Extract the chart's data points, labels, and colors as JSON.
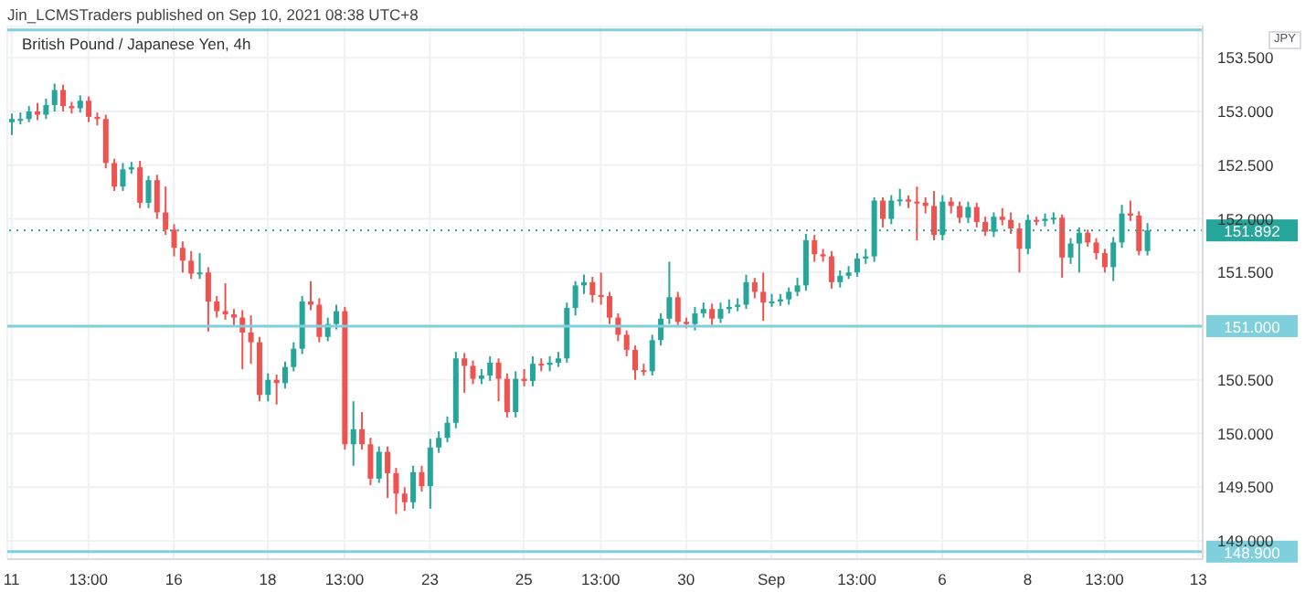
{
  "chart_data": {
    "type": "candlestick",
    "title": "British Pound / Japanese Yen, 4h",
    "annotations": [
      "Jin_LCMSTraders published on Sep 10, 2021 08:38 UTC+8",
      "JPY"
    ],
    "categories": [
      "11",
      null,
      null,
      null,
      null,
      null,
      null,
      null,
      null,
      "13:00",
      null,
      null,
      null,
      null,
      null,
      null,
      null,
      null,
      null,
      "16",
      null,
      null,
      null,
      null,
      null,
      null,
      null,
      null,
      null,
      null,
      "18",
      null,
      null,
      null,
      null,
      null,
      null,
      null,
      null,
      "13:00",
      null,
      null,
      null,
      null,
      null,
      null,
      null,
      null,
      null,
      "23",
      null,
      null,
      null,
      null,
      null,
      null,
      null,
      null,
      null,
      null,
      "25",
      null,
      null,
      null,
      null,
      null,
      null,
      null,
      null,
      "13:00",
      null,
      null,
      null,
      null,
      null,
      null,
      null,
      null,
      null,
      "30",
      null,
      null,
      null,
      null,
      null,
      null,
      null,
      null,
      null,
      "Sep",
      null,
      null,
      null,
      null,
      null,
      null,
      null,
      null,
      null,
      "13:00",
      null,
      null,
      null,
      null,
      null,
      null,
      null,
      null,
      null,
      "6",
      null,
      null,
      null,
      null,
      null,
      null,
      null,
      null,
      null,
      "8",
      null,
      null,
      null,
      null,
      null,
      null,
      null,
      null,
      "13:00",
      null,
      null,
      null,
      null,
      null,
      null,
      null,
      null,
      null,
      null,
      "13"
    ],
    "ohlc": [
      [
        152.9,
        152.98,
        152.78,
        152.93
      ],
      [
        152.93,
        152.99,
        152.88,
        152.93
      ],
      [
        152.93,
        153.05,
        152.9,
        153.0
      ],
      [
        153.0,
        153.08,
        152.92,
        152.97
      ],
      [
        152.97,
        153.12,
        152.93,
        153.06
      ],
      [
        153.06,
        153.26,
        153.0,
        153.2
      ],
      [
        153.2,
        153.25,
        153.0,
        153.05
      ],
      [
        153.05,
        153.09,
        152.98,
        153.03
      ],
      [
        153.03,
        153.15,
        152.99,
        153.1
      ],
      [
        153.1,
        153.14,
        152.9,
        152.95
      ],
      [
        152.95,
        152.99,
        152.87,
        152.93
      ],
      [
        152.93,
        152.97,
        152.47,
        152.52
      ],
      [
        152.52,
        152.56,
        152.26,
        152.3
      ],
      [
        152.3,
        152.52,
        152.26,
        152.46
      ],
      [
        152.46,
        152.53,
        152.42,
        152.48
      ],
      [
        152.48,
        152.54,
        152.1,
        152.15
      ],
      [
        152.15,
        152.4,
        152.1,
        152.36
      ],
      [
        152.36,
        152.41,
        152.0,
        152.06
      ],
      [
        152.06,
        152.3,
        151.85,
        151.9
      ],
      [
        151.9,
        151.95,
        151.65,
        151.73
      ],
      [
        151.73,
        151.79,
        151.5,
        151.61
      ],
      [
        151.61,
        151.7,
        151.44,
        151.49
      ],
      [
        151.49,
        151.68,
        151.44,
        151.5
      ],
      [
        151.5,
        151.55,
        150.95,
        151.23
      ],
      [
        151.23,
        151.28,
        151.08,
        151.14
      ],
      [
        151.14,
        151.4,
        151.06,
        151.11
      ],
      [
        151.11,
        151.16,
        151.0,
        151.08
      ],
      [
        151.08,
        151.15,
        150.6,
        150.94
      ],
      [
        150.94,
        151.1,
        150.65,
        150.85
      ],
      [
        150.85,
        150.9,
        150.3,
        150.36
      ],
      [
        150.36,
        150.56,
        150.3,
        150.5
      ],
      [
        150.5,
        150.55,
        150.27,
        150.47
      ],
      [
        150.47,
        150.67,
        150.42,
        150.62
      ],
      [
        150.62,
        150.85,
        150.58,
        150.79
      ],
      [
        150.79,
        151.28,
        150.74,
        151.23
      ],
      [
        151.23,
        151.42,
        151.15,
        151.2
      ],
      [
        151.2,
        151.26,
        150.85,
        150.9
      ],
      [
        150.9,
        151.08,
        150.86,
        151.02
      ],
      [
        151.02,
        151.2,
        150.97,
        151.14
      ],
      [
        151.14,
        151.18,
        149.85,
        149.9
      ],
      [
        149.9,
        150.3,
        149.7,
        150.04
      ],
      [
        150.04,
        150.2,
        149.85,
        149.9
      ],
      [
        149.9,
        149.96,
        149.52,
        149.58
      ],
      [
        149.58,
        149.88,
        149.54,
        149.83
      ],
      [
        149.83,
        149.88,
        149.4,
        149.63
      ],
      [
        149.63,
        149.68,
        149.25,
        149.44
      ],
      [
        149.44,
        149.5,
        149.28,
        149.36
      ],
      [
        149.36,
        149.7,
        149.3,
        149.64
      ],
      [
        149.64,
        149.7,
        149.46,
        149.51
      ],
      [
        149.51,
        149.95,
        149.3,
        149.87
      ],
      [
        149.87,
        150.02,
        149.82,
        149.96
      ],
      [
        149.96,
        150.16,
        149.92,
        150.1
      ],
      [
        150.1,
        150.76,
        150.05,
        150.7
      ],
      [
        150.7,
        150.75,
        150.38,
        150.63
      ],
      [
        150.63,
        150.68,
        150.46,
        150.51
      ],
      [
        150.51,
        150.6,
        150.46,
        150.54
      ],
      [
        150.54,
        150.72,
        150.49,
        150.66
      ],
      [
        150.66,
        150.7,
        150.3,
        150.51
      ],
      [
        150.51,
        150.56,
        150.15,
        150.2
      ],
      [
        150.2,
        150.58,
        150.15,
        150.51
      ],
      [
        150.51,
        150.6,
        150.44,
        150.49
      ],
      [
        150.49,
        150.72,
        150.44,
        150.65
      ],
      [
        150.65,
        150.7,
        150.58,
        150.64
      ],
      [
        150.64,
        150.72,
        150.58,
        150.66
      ],
      [
        150.66,
        150.76,
        150.62,
        150.7
      ],
      [
        150.7,
        151.22,
        150.66,
        151.17
      ],
      [
        151.17,
        151.42,
        151.1,
        151.38
      ],
      [
        151.38,
        151.48,
        151.3,
        151.41
      ],
      [
        151.41,
        151.46,
        151.22,
        151.29
      ],
      [
        151.29,
        151.5,
        151.2,
        151.28
      ],
      [
        151.28,
        151.32,
        151.02,
        151.08
      ],
      [
        151.08,
        151.12,
        150.86,
        150.92
      ],
      [
        150.92,
        150.96,
        150.72,
        150.78
      ],
      [
        150.78,
        150.82,
        150.5,
        150.59
      ],
      [
        150.59,
        150.65,
        150.54,
        150.58
      ],
      [
        150.58,
        150.92,
        150.54,
        150.87
      ],
      [
        150.87,
        151.12,
        150.82,
        151.07
      ],
      [
        151.07,
        151.6,
        151.02,
        151.27
      ],
      [
        151.27,
        151.32,
        151.0,
        151.04
      ],
      [
        151.04,
        151.08,
        150.98,
        151.02
      ],
      [
        151.02,
        151.18,
        150.96,
        151.12
      ],
      [
        151.12,
        151.22,
        151.08,
        151.16
      ],
      [
        151.16,
        151.21,
        151.0,
        151.07
      ],
      [
        151.07,
        151.22,
        151.03,
        151.16
      ],
      [
        151.16,
        151.25,
        151.12,
        151.18
      ],
      [
        151.18,
        151.26,
        151.14,
        151.2
      ],
      [
        151.2,
        151.48,
        151.16,
        151.41
      ],
      [
        151.41,
        151.45,
        151.26,
        151.32
      ],
      [
        151.32,
        151.5,
        151.05,
        151.22
      ],
      [
        151.22,
        151.3,
        151.18,
        151.23
      ],
      [
        151.23,
        151.3,
        151.19,
        151.25
      ],
      [
        151.25,
        151.36,
        151.2,
        151.32
      ],
      [
        151.32,
        151.45,
        151.28,
        151.38
      ],
      [
        151.38,
        151.86,
        151.33,
        151.8
      ],
      [
        151.8,
        151.85,
        151.6,
        151.67
      ],
      [
        151.67,
        151.72,
        151.6,
        151.65
      ],
      [
        151.65,
        151.7,
        151.35,
        151.41
      ],
      [
        151.41,
        151.52,
        151.36,
        151.47
      ],
      [
        151.47,
        151.56,
        151.44,
        151.5
      ],
      [
        151.5,
        151.68,
        151.46,
        151.63
      ],
      [
        151.63,
        151.72,
        151.58,
        151.65
      ],
      [
        151.65,
        152.2,
        151.6,
        152.17
      ],
      [
        152.17,
        152.2,
        151.92,
        152.0
      ],
      [
        152.0,
        152.22,
        151.95,
        152.17
      ],
      [
        152.17,
        152.28,
        152.12,
        152.18
      ],
      [
        152.18,
        152.22,
        152.1,
        152.16
      ],
      [
        152.16,
        152.3,
        151.8,
        152.15
      ],
      [
        152.15,
        152.2,
        152.05,
        152.12
      ],
      [
        152.12,
        152.26,
        151.8,
        151.85
      ],
      [
        151.85,
        152.22,
        151.8,
        152.16
      ],
      [
        152.16,
        152.2,
        152.05,
        152.12
      ],
      [
        152.12,
        152.16,
        151.96,
        152.01
      ],
      [
        152.01,
        152.16,
        151.96,
        152.11
      ],
      [
        152.11,
        152.15,
        151.92,
        151.97
      ],
      [
        151.97,
        152.02,
        151.84,
        151.88
      ],
      [
        151.88,
        152.06,
        151.83,
        152.02
      ],
      [
        152.02,
        152.1,
        151.94,
        151.99
      ],
      [
        151.99,
        152.06,
        151.86,
        151.91
      ],
      [
        151.91,
        151.96,
        151.5,
        151.72
      ],
      [
        151.72,
        152.04,
        151.67,
        151.99
      ],
      [
        151.99,
        152.02,
        151.94,
        151.98
      ],
      [
        151.98,
        152.05,
        151.93,
        152.0
      ],
      [
        152.0,
        152.06,
        151.95,
        152.01
      ],
      [
        152.01,
        152.04,
        151.45,
        151.64
      ],
      [
        151.64,
        151.82,
        151.58,
        151.77
      ],
      [
        151.77,
        151.92,
        151.5,
        151.87
      ],
      [
        151.87,
        151.9,
        151.74,
        151.78
      ],
      [
        151.78,
        151.82,
        151.62,
        151.68
      ],
      [
        151.68,
        151.72,
        151.5,
        151.55
      ],
      [
        151.55,
        151.83,
        151.42,
        151.78
      ],
      [
        151.78,
        152.13,
        151.73,
        152.05
      ],
      [
        152.05,
        152.17,
        151.98,
        152.03
      ],
      [
        152.03,
        152.07,
        151.66,
        151.7
      ],
      [
        151.7,
        151.96,
        151.66,
        151.892
      ],
      null,
      null,
      null,
      null,
      null,
      null
    ],
    "colors": [
      "#26a69a",
      "#26a69a",
      "#26a69a",
      "#ef5350",
      "#26a69a",
      "#26a69a",
      "#ef5350",
      "#ef5350",
      "#26a69a",
      "#ef5350",
      "#ef5350",
      "#ef5350",
      "#ef5350",
      "#26a69a",
      "#26a69a",
      "#ef5350",
      "#26a69a",
      "#ef5350",
      "#ef5350",
      "#ef5350",
      "#ef5350",
      "#ef5350",
      "#26a69a",
      "#ef5350",
      "#ef5350",
      "#ef5350",
      "#ef5350",
      "#ef5350",
      "#ef5350",
      "#ef5350",
      "#26a69a",
      "#ef5350",
      "#26a69a",
      "#26a69a",
      "#26a69a",
      "#ef5350",
      "#ef5350",
      "#26a69a",
      "#26a69a",
      "#ef5350",
      "#26a69a",
      "#ef5350",
      "#ef5350",
      "#26a69a",
      "#ef5350",
      "#ef5350",
      "#ef5350",
      "#26a69a",
      "#ef5350",
      "#26a69a",
      "#26a69a",
      "#26a69a",
      "#26a69a",
      "#ef5350",
      "#ef5350",
      "#26a69a",
      "#26a69a",
      "#ef5350",
      "#ef5350",
      "#26a69a",
      "#ef5350",
      "#26a69a",
      "#ef5350",
      "#26a69a",
      "#26a69a",
      "#26a69a",
      "#26a69a",
      "#26a69a",
      "#ef5350",
      "#ef5350",
      "#ef5350",
      "#ef5350",
      "#ef5350",
      "#ef5350",
      "#ef5350",
      "#26a69a",
      "#26a69a",
      "#26a69a",
      "#ef5350",
      "#ef5350",
      "#26a69a",
      "#26a69a",
      "#ef5350",
      "#26a69a",
      "#26a69a",
      "#26a69a",
      "#26a69a",
      "#ef5350",
      "#ef5350",
      "#26a69a",
      "#26a69a",
      "#26a69a",
      "#26a69a",
      "#26a69a",
      "#ef5350",
      "#ef5350",
      "#ef5350",
      "#26a69a",
      "#26a69a",
      "#26a69a",
      "#26a69a",
      "#26a69a",
      "#ef5350",
      "#26a69a",
      "#26a69a",
      "#ef5350",
      "#ef5350",
      "#ef5350",
      "#ef5350",
      "#26a69a",
      "#ef5350",
      "#ef5350",
      "#26a69a",
      "#ef5350",
      "#ef5350",
      "#26a69a",
      "#ef5350",
      "#ef5350",
      "#ef5350",
      "#26a69a",
      "#ef5350",
      "#26a69a",
      "#26a69a",
      "#ef5350",
      "#26a69a",
      "#26a69a",
      "#ef5350",
      "#ef5350",
      "#ef5350",
      "#26a69a",
      "#26a69a",
      "#ef5350",
      "#ef5350",
      "#26a69a",
      null,
      null,
      null,
      null,
      null,
      null
    ],
    "ylim": [
      148.83,
      153.8
    ],
    "yticks": [
      {
        "value": 149,
        "label": "149.000"
      },
      {
        "value": 149.5,
        "label": "149.500"
      },
      {
        "value": 150,
        "label": "150.000"
      },
      {
        "value": 150.5,
        "label": "150.500"
      },
      {
        "value": 151.5,
        "label": "151.500"
      },
      {
        "value": 152,
        "label": "152.000"
      },
      {
        "value": 152.5,
        "label": "152.500"
      },
      {
        "value": 153,
        "label": "153.000"
      },
      {
        "value": 153.5,
        "label": "153.500"
      }
    ],
    "ref_lines": [
      {
        "axis": "y",
        "value": 153.76,
        "label": null,
        "color": "#7fd0dc",
        "line_style": "solid"
      },
      {
        "axis": "y",
        "value": 151,
        "label": "151.000",
        "color": "#7fd0dc",
        "line_style": "solid"
      },
      {
        "axis": "y",
        "value": 148.9,
        "label": "148.900",
        "color": "#7fd0dc",
        "line_style": "solid"
      },
      {
        "axis": "y",
        "value": 151.892,
        "label": "151.892",
        "color": "#26a69a",
        "line_style": "dotted"
      }
    ],
    "grid": true
  }
}
